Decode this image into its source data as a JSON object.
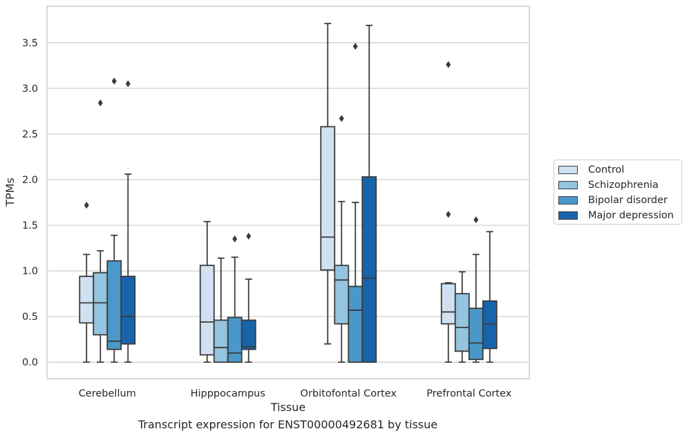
{
  "chart_data": {
    "type": "box",
    "title": "",
    "xlabel": "Tissue",
    "ylabel": "TPMs",
    "ylim": [
      -0.18,
      3.9
    ],
    "yticks": [
      "0.0",
      "0.5",
      "1.0",
      "1.5",
      "2.0",
      "2.5",
      "3.0",
      "3.5"
    ],
    "grid": true,
    "legend_position": "right",
    "categories": [
      "Cerebellum",
      "Hipppocampus",
      "Orbitofontal Cortex",
      "Prefrontal Cortex"
    ],
    "series": [
      {
        "name": "Control",
        "color": "#d0e1f2",
        "boxes": [
          {
            "whisker_low": 0.0,
            "q1": 0.43,
            "median": 0.65,
            "q3": 0.94,
            "whisker_high": 1.18,
            "outliers": [
              1.72
            ]
          },
          {
            "whisker_low": 0.0,
            "q1": 0.08,
            "median": 0.44,
            "q3": 1.06,
            "whisker_high": 1.54,
            "outliers": []
          },
          {
            "whisker_low": 0.2,
            "q1": 1.01,
            "median": 1.37,
            "q3": 2.58,
            "whisker_high": 3.71,
            "outliers": []
          },
          {
            "whisker_low": 0.0,
            "q1": 0.42,
            "median": 0.55,
            "q3": 0.86,
            "whisker_high": 0.87,
            "outliers": [
              1.62,
              3.26
            ]
          }
        ]
      },
      {
        "name": "Schizophrenia",
        "color": "#94c4df",
        "boxes": [
          {
            "whisker_low": 0.0,
            "q1": 0.3,
            "median": 0.65,
            "q3": 0.98,
            "whisker_high": 1.22,
            "outliers": [
              2.84
            ]
          },
          {
            "whisker_low": 0.0,
            "q1": 0.0,
            "median": 0.16,
            "q3": 0.46,
            "whisker_high": 1.14,
            "outliers": []
          },
          {
            "whisker_low": 0.0,
            "q1": 0.42,
            "median": 0.9,
            "q3": 1.06,
            "whisker_high": 1.76,
            "outliers": [
              2.67
            ]
          },
          {
            "whisker_low": 0.0,
            "q1": 0.12,
            "median": 0.38,
            "q3": 0.75,
            "whisker_high": 0.99,
            "outliers": []
          }
        ]
      },
      {
        "name": "Bipolar disorder",
        "color": "#4a98c9",
        "boxes": [
          {
            "whisker_low": 0.0,
            "q1": 0.14,
            "median": 0.23,
            "q3": 1.11,
            "whisker_high": 1.39,
            "outliers": [
              3.08
            ]
          },
          {
            "whisker_low": 0.0,
            "q1": 0.0,
            "median": 0.1,
            "q3": 0.49,
            "whisker_high": 1.15,
            "outliers": [
              1.35
            ]
          },
          {
            "whisker_low": 0.0,
            "q1": 0.0,
            "median": 0.57,
            "q3": 0.83,
            "whisker_high": 1.75,
            "outliers": [
              3.46
            ]
          },
          {
            "whisker_low": 0.0,
            "q1": 0.03,
            "median": 0.21,
            "q3": 0.59,
            "whisker_high": 1.18,
            "outliers": [
              1.56
            ]
          }
        ]
      },
      {
        "name": "Major depression",
        "color": "#1764ab",
        "boxes": [
          {
            "whisker_low": 0.0,
            "q1": 0.2,
            "median": 0.5,
            "q3": 0.94,
            "whisker_high": 2.06,
            "outliers": [
              3.05
            ]
          },
          {
            "whisker_low": 0.0,
            "q1": 0.14,
            "median": 0.17,
            "q3": 0.46,
            "whisker_high": 0.91,
            "outliers": [
              1.38
            ]
          },
          {
            "whisker_low": 0.0,
            "q1": 0.0,
            "median": 0.92,
            "q3": 2.03,
            "whisker_high": 3.69,
            "outliers": []
          },
          {
            "whisker_low": 0.0,
            "q1": 0.15,
            "median": 0.42,
            "q3": 0.67,
            "whisker_high": 1.43,
            "outliers": []
          }
        ]
      }
    ]
  },
  "caption": "Transcript expression for ENST00000492681 by tissue",
  "colors": {
    "grid": "#cccccc",
    "frame": "#cccccc",
    "edge": "#3a3a3a",
    "outlier": "#3a3a3a"
  }
}
